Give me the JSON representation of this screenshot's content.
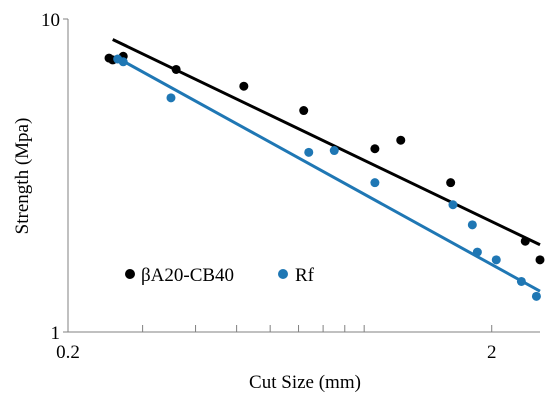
{
  "chart_data": {
    "type": "scatter",
    "x_scale": "log",
    "y_scale": "log",
    "xlabel": "Cut Size (mm)",
    "ylabel": "Strength (Mpa)",
    "xlim": [
      0.2,
      2.6
    ],
    "ylim": [
      1,
      10
    ],
    "x_tick_labels": [
      {
        "value": 0.2,
        "label": "0.2"
      },
      {
        "value": 2,
        "label": "2"
      }
    ],
    "y_tick_labels": [
      {
        "value": 1,
        "label": "1"
      },
      {
        "value": 10,
        "label": "10"
      }
    ],
    "x_minor_ticks": [
      0.3,
      0.4,
      0.5,
      0.6,
      0.7,
      0.8,
      0.9,
      1,
      2
    ],
    "grid": false,
    "legend_position": "bottom-left",
    "series": [
      {
        "name": "βA20-CB40",
        "color": "#000000",
        "marker": "circle",
        "points": [
          {
            "x": 0.25,
            "y": 7.5
          },
          {
            "x": 0.255,
            "y": 7.4
          },
          {
            "x": 0.27,
            "y": 7.6
          },
          {
            "x": 0.36,
            "y": 6.9
          },
          {
            "x": 0.52,
            "y": 6.1
          },
          {
            "x": 0.72,
            "y": 5.1
          },
          {
            "x": 1.06,
            "y": 3.85
          },
          {
            "x": 1.22,
            "y": 4.1
          },
          {
            "x": 1.6,
            "y": 3.0
          },
          {
            "x": 2.4,
            "y": 1.95
          },
          {
            "x": 2.6,
            "y": 1.7
          }
        ],
        "trendline": {
          "x1": 0.255,
          "y1": 8.6,
          "x2": 2.6,
          "y2": 1.9
        }
      },
      {
        "name": "Rf",
        "color": "#1f77b4",
        "marker": "circle",
        "points": [
          {
            "x": 0.262,
            "y": 7.45
          },
          {
            "x": 0.27,
            "y": 7.3
          },
          {
            "x": 0.35,
            "y": 5.6
          },
          {
            "x": 0.74,
            "y": 3.75
          },
          {
            "x": 0.85,
            "y": 3.8
          },
          {
            "x": 1.06,
            "y": 3.0
          },
          {
            "x": 1.62,
            "y": 2.55
          },
          {
            "x": 1.8,
            "y": 2.2
          },
          {
            "x": 1.85,
            "y": 1.8
          },
          {
            "x": 2.05,
            "y": 1.7
          },
          {
            "x": 2.35,
            "y": 1.45
          },
          {
            "x": 2.55,
            "y": 1.3
          }
        ],
        "trendline": {
          "x1": 0.262,
          "y1": 7.5,
          "x2": 2.6,
          "y2": 1.35
        }
      }
    ]
  }
}
